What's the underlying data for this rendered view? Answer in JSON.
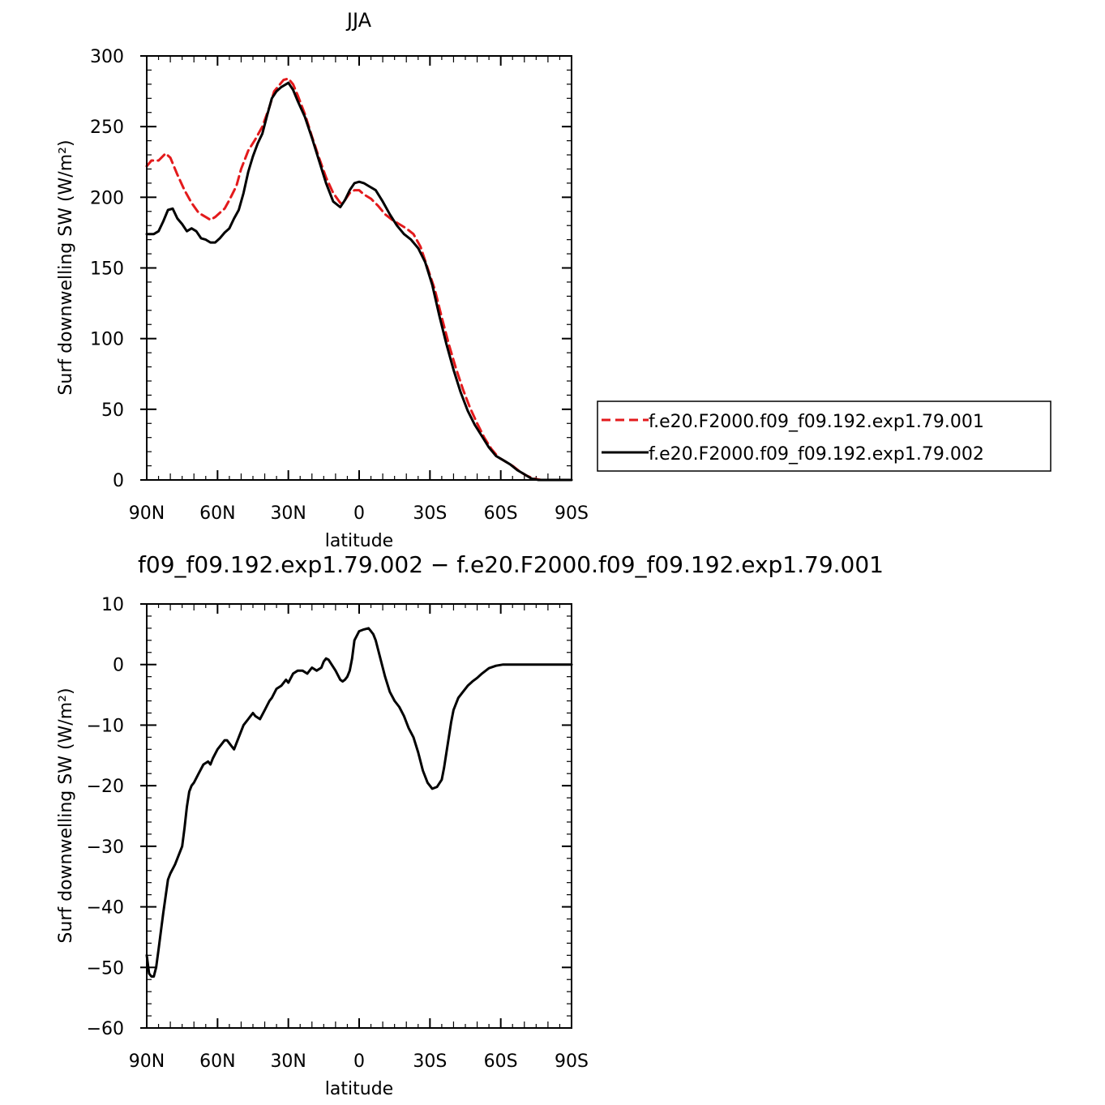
{
  "chart_data": [
    {
      "type": "line",
      "title": "JJA",
      "xlabel": "latitude",
      "ylabel": "Surf downwelling SW (W/m²)",
      "xlim": [
        90,
        -90
      ],
      "ylim": [
        0,
        300
      ],
      "xticks": [
        90,
        60,
        30,
        0,
        -30,
        -60,
        -90
      ],
      "xtick_labels": [
        "90N",
        "60N",
        "30N",
        "0",
        "30S",
        "60S",
        "90S"
      ],
      "yticks": [
        0,
        50,
        100,
        150,
        200,
        250,
        300
      ],
      "ytick_labels": [
        "0",
        "50",
        "100",
        "150",
        "200",
        "250",
        "300"
      ],
      "legend_position": "right",
      "series": [
        {
          "name": "f.e20.F2000.f09_f09.192.exp1.79.001",
          "color": "#e31a1c",
          "dash": "dashed",
          "x": [
            90,
            88,
            85,
            82,
            80,
            77,
            74,
            71,
            68,
            65,
            63,
            61,
            59,
            57,
            55,
            52,
            50,
            47,
            44,
            41,
            38,
            36,
            34,
            32,
            30,
            28,
            26,
            23,
            20,
            17,
            14,
            11,
            8,
            6,
            4,
            2,
            0,
            -2,
            -5,
            -8,
            -11,
            -14,
            -17,
            -20,
            -23,
            -26,
            -29,
            -32,
            -35,
            -38,
            -41,
            -44,
            -47,
            -50,
            -53,
            -56,
            -59,
            -62,
            -65,
            -68,
            -71,
            -74,
            -77,
            -80,
            -85,
            -90
          ],
          "y": [
            222,
            226,
            226,
            231,
            228,
            216,
            205,
            196,
            189,
            186,
            184,
            186,
            189,
            192,
            198,
            208,
            220,
            233,
            241,
            250,
            264,
            275,
            279,
            283,
            284,
            280,
            272,
            259,
            243,
            228,
            214,
            203,
            196,
            198,
            203,
            205,
            205,
            202,
            199,
            194,
            188,
            184,
            181,
            178,
            174,
            165,
            150,
            135,
            115,
            96,
            79,
            64,
            51,
            40,
            30,
            22,
            16,
            13,
            10,
            6,
            3,
            1,
            0,
            0,
            0,
            0
          ]
        },
        {
          "name": "f.e20.F2000.f09_f09.192.exp1.79.002",
          "color": "#000000",
          "dash": "solid",
          "x": [
            90,
            87,
            85,
            83,
            81,
            79,
            77,
            75,
            73,
            71,
            69,
            67,
            65,
            63,
            61,
            59,
            57,
            55,
            53,
            51,
            49,
            47,
            45,
            43,
            41,
            39,
            37,
            35,
            33,
            31,
            30,
            28,
            26,
            23,
            20,
            17,
            14,
            11,
            8,
            6,
            4,
            2,
            0,
            -2,
            -4,
            -7,
            -10,
            -13,
            -16,
            -19,
            -22,
            -25,
            -28,
            -31,
            -34,
            -37,
            -40,
            -43,
            -46,
            -49,
            -52,
            -55,
            -58,
            -61,
            -64,
            -67,
            -70,
            -73,
            -76,
            -80,
            -85,
            -90
          ],
          "y": [
            174,
            174,
            176,
            183,
            191,
            192,
            185,
            181,
            176,
            178,
            176,
            171,
            170,
            168,
            168,
            171,
            175,
            178,
            185,
            191,
            203,
            218,
            229,
            238,
            245,
            258,
            270,
            275,
            278,
            280,
            281,
            276,
            268,
            257,
            242,
            226,
            210,
            197,
            193,
            198,
            205,
            210,
            211,
            210,
            208,
            205,
            197,
            188,
            180,
            174,
            170,
            164,
            154,
            138,
            116,
            96,
            78,
            62,
            49,
            39,
            31,
            23,
            17,
            14,
            11,
            7,
            4,
            1,
            0,
            0,
            0,
            0
          ]
        }
      ]
    },
    {
      "type": "line",
      "title": "f09_f09.192.exp1.79.002 − f.e20.F2000.f09_f09.192.exp1.79.001",
      "xlabel": "latitude",
      "ylabel": "Surf downwelling SW (W/m²)",
      "xlim": [
        90,
        -90
      ],
      "ylim": [
        -60,
        10
      ],
      "xticks": [
        90,
        60,
        30,
        0,
        -30,
        -60,
        -90
      ],
      "xtick_labels": [
        "90N",
        "60N",
        "30N",
        "0",
        "30S",
        "60S",
        "90S"
      ],
      "yticks": [
        -60,
        -50,
        -40,
        -30,
        -20,
        -10,
        0,
        10
      ],
      "ytick_labels": [
        "−60",
        "−50",
        "−40",
        "−30",
        "−20",
        "−10",
        "0",
        "10"
      ],
      "series": [
        {
          "color": "#000000",
          "dash": "solid",
          "x": [
            90,
            89,
            88,
            87,
            86,
            85,
            83,
            81,
            80,
            78,
            76,
            75,
            74,
            73,
            72,
            71,
            70,
            68,
            66,
            64,
            63,
            62,
            60,
            58,
            57,
            56,
            55,
            54,
            53,
            51,
            49,
            47,
            46,
            45,
            44,
            42,
            40,
            38,
            37,
            35,
            33,
            31,
            30,
            28,
            26,
            24,
            22,
            20,
            18,
            16,
            15,
            14,
            13,
            12,
            10,
            8,
            7,
            6,
            5,
            4,
            3,
            2,
            0,
            -2,
            -4,
            -5,
            -6,
            -7,
            -9,
            -11,
            -13,
            -15,
            -17,
            -19,
            -21,
            -23,
            -25,
            -27,
            -29,
            -31,
            -33,
            -35,
            -36,
            -37,
            -38,
            -39,
            -40,
            -42,
            -44,
            -46,
            -48,
            -50,
            -52,
            -55,
            -58,
            -61,
            -64,
            -67,
            -70,
            -73,
            -76,
            -80,
            -85,
            -90
          ],
          "y": [
            -48,
            -51,
            -51.5,
            -51.5,
            -50,
            -47,
            -41,
            -35.5,
            -34.5,
            -33,
            -31,
            -30,
            -27,
            -23.5,
            -21,
            -20,
            -19.5,
            -18,
            -16.5,
            -16,
            -16.5,
            -15.5,
            -14,
            -13,
            -12.5,
            -12.5,
            -13,
            -13.5,
            -14,
            -12,
            -10,
            -9,
            -8.5,
            -8,
            -8.5,
            -9,
            -7.5,
            -6,
            -5.5,
            -4,
            -3.5,
            -2.5,
            -3,
            -1.5,
            -1,
            -1,
            -1.5,
            -0.5,
            -1,
            -0.5,
            0.5,
            1,
            0.8,
            0.2,
            -1,
            -2.5,
            -2.8,
            -2.5,
            -2,
            -1,
            1,
            4,
            5.5,
            5.8,
            6,
            5.5,
            5,
            4,
            1,
            -2,
            -4.5,
            -6,
            -7,
            -8.5,
            -10.5,
            -12,
            -14.5,
            -17.5,
            -19.5,
            -20.5,
            -20.2,
            -19,
            -17,
            -14.5,
            -12,
            -9.5,
            -7.5,
            -5.5,
            -4.5,
            -3.5,
            -2.8,
            -2.2,
            -1.5,
            -0.6,
            -0.2,
            0,
            0,
            0,
            0,
            0,
            0,
            0,
            0,
            0
          ]
        }
      ]
    }
  ]
}
